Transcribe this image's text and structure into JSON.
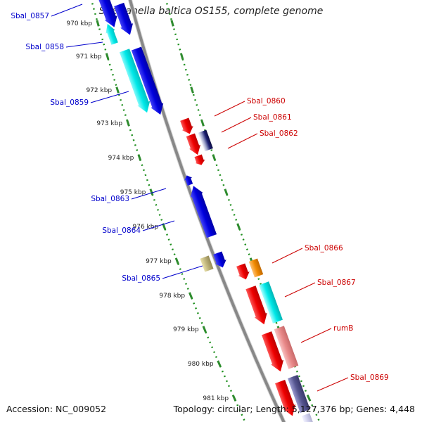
{
  "title": "Shewanella baltica OS155, complete genome",
  "accession_text": "Accession: NC_009052",
  "summary_text": "Topology: circular; Length: 5,127,376 bp; Genes: 4,448",
  "colors": {
    "backbone": "#888888",
    "tick_dots": "#1f8f1f",
    "tick_marks": "#2e8b2e",
    "left_label": "#0000cc",
    "right_label": "#cc0000"
  },
  "scale_labels": [
    "970 kbp",
    "971 kbp",
    "972 kbp",
    "973 kbp",
    "974 kbp",
    "975 kbp",
    "976 kbp",
    "977 kbp",
    "978 kbp",
    "979 kbp",
    "980 kbp",
    "981 kbp"
  ],
  "left_genes": [
    {
      "label": "Sbal_0857"
    },
    {
      "label": "Sbal_0858"
    },
    {
      "label": "Sbal_0859"
    },
    {
      "label": "Sbal_0863"
    },
    {
      "label": "Sbal_0864"
    },
    {
      "label": "Sbal_0865"
    }
  ],
  "right_genes": [
    {
      "label": "Sbal_0860"
    },
    {
      "label": "Sbal_0861"
    },
    {
      "label": "Sbal_0862"
    },
    {
      "label": "Sbal_0866"
    },
    {
      "label": "Sbal_0867"
    },
    {
      "label": "rumB"
    },
    {
      "label": "Sbal_0869"
    }
  ]
}
